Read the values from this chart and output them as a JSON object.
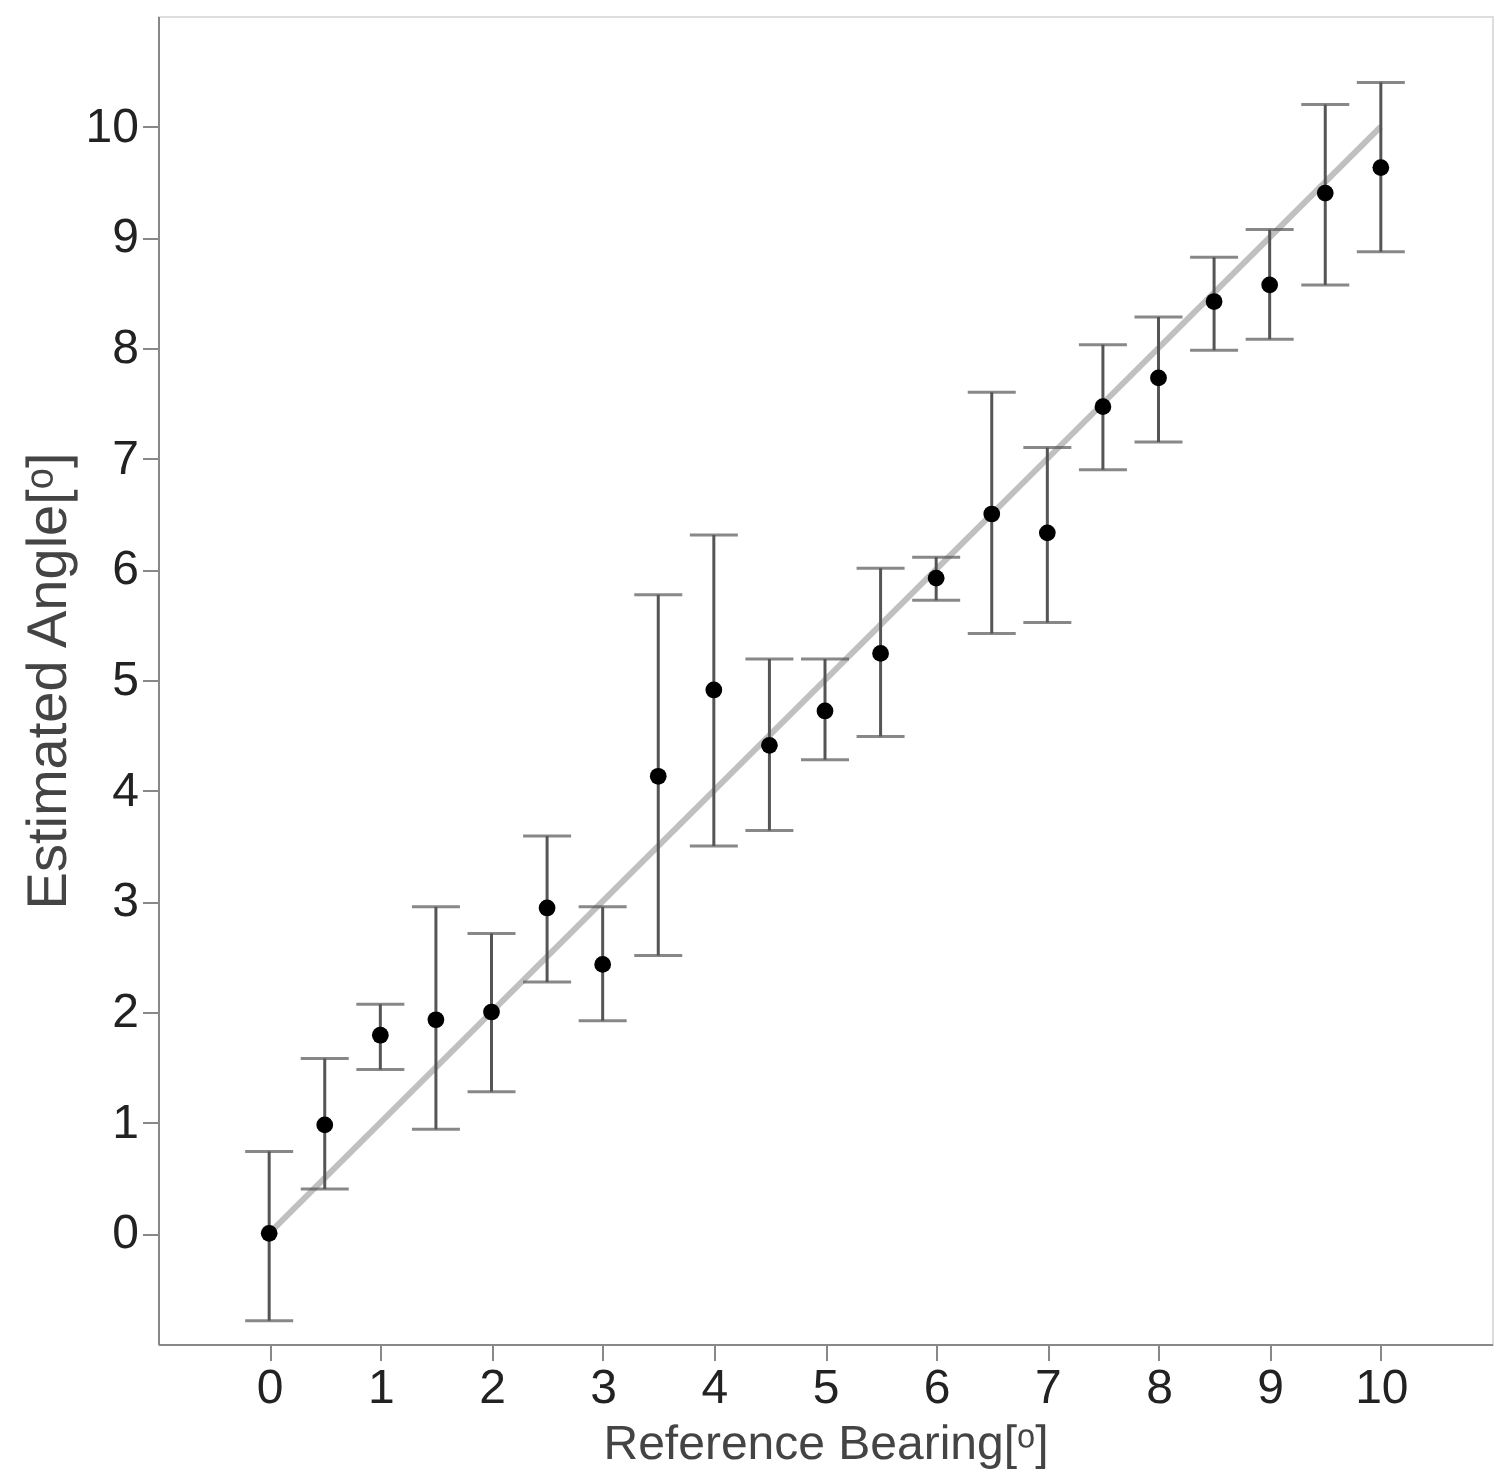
{
  "chart_data": {
    "type": "scatter",
    "xlabel": "Reference Bearing[ᵒ]",
    "ylabel": "Estimated Angle[ᵒ]",
    "xlim": [
      -1,
      11
    ],
    "ylim": [
      -1,
      11
    ],
    "xticks": [
      0,
      1,
      2,
      3,
      4,
      5,
      6,
      7,
      8,
      9,
      10
    ],
    "yticks": [
      0,
      1,
      2,
      3,
      4,
      5,
      6,
      7,
      8,
      9,
      10
    ],
    "grid": false,
    "series": [
      {
        "type": "line",
        "color": "#c0c0c0",
        "x": [
          0,
          10
        ],
        "values": [
          0,
          10
        ],
        "marker": "none",
        "line_style": "solid"
      },
      {
        "color": "#000000",
        "marker": "circle",
        "x": [
          0,
          0.5,
          1,
          1.5,
          2,
          2.5,
          3,
          3.5,
          4,
          4.5,
          5,
          5.5,
          6,
          6.5,
          7,
          7.5,
          8,
          8.5,
          9,
          9.5,
          10
        ],
        "values": [
          0.0,
          0.98,
          1.79,
          1.93,
          2.0,
          2.94,
          2.43,
          4.13,
          4.91,
          4.41,
          4.72,
          5.24,
          5.92,
          6.5,
          6.33,
          7.47,
          7.73,
          8.42,
          8.57,
          9.4,
          9.63
        ],
        "errors": [
          [
            -0.79,
            0.74
          ],
          [
            0.4,
            1.58
          ],
          [
            1.48,
            2.07
          ],
          [
            0.94,
            2.95
          ],
          [
            1.28,
            2.71
          ],
          [
            2.27,
            3.59
          ],
          [
            1.92,
            2.95
          ],
          [
            2.51,
            5.77
          ],
          [
            3.5,
            6.31
          ],
          [
            3.64,
            5.19
          ],
          [
            4.28,
            5.19
          ],
          [
            4.49,
            6.01
          ],
          [
            5.72,
            6.11
          ],
          [
            5.42,
            7.6
          ],
          [
            5.52,
            7.1
          ],
          [
            6.9,
            8.03
          ],
          [
            7.15,
            8.28
          ],
          [
            7.98,
            8.82
          ],
          [
            8.08,
            9.07
          ],
          [
            8.57,
            10.2
          ],
          [
            8.87,
            10.4
          ]
        ]
      }
    ]
  }
}
